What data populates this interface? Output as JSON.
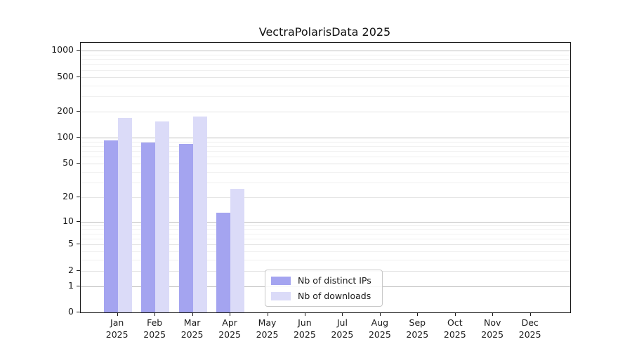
{
  "chart_data": {
    "type": "bar",
    "title": "VectraPolarisData 2025",
    "y_scale": "log10(1+v)",
    "categories": [
      "Jan",
      "Feb",
      "Mar",
      "Apr",
      "May",
      "Jun",
      "Jul",
      "Aug",
      "Sep",
      "Oct",
      "Nov",
      "Dec"
    ],
    "category_year": "2025",
    "series": [
      {
        "name": "Nb of distinct IPs",
        "color": "#a4a4f0",
        "values": [
          93,
          88,
          85,
          13,
          0,
          0,
          0,
          0,
          0,
          0,
          0,
          0
        ]
      },
      {
        "name": "Nb of downloads",
        "color": "#dbdbf8",
        "values": [
          170,
          155,
          175,
          25,
          0,
          0,
          0,
          0,
          0,
          0,
          0,
          0
        ]
      }
    ],
    "y_ticks": [
      0,
      1,
      2,
      5,
      10,
      20,
      50,
      100,
      200,
      500,
      1000
    ],
    "y_minor_gridlines": [
      3,
      4,
      6,
      7,
      8,
      9,
      30,
      40,
      60,
      70,
      80,
      90,
      300,
      400,
      600,
      700,
      800,
      900
    ],
    "y_decade_gridlines": [
      1,
      10,
      100,
      1000
    ],
    "ylim": [
      0,
      1230
    ],
    "grid": true,
    "legend_position": "inside-bottom-center",
    "colors": {
      "decade_gridline": "#bdbdbd",
      "labeled_gridline": "#e4e4e4",
      "minor_gridline": "#f0f0f0",
      "axis": "#1a1a1a",
      "text": "#1a1a1a"
    }
  }
}
